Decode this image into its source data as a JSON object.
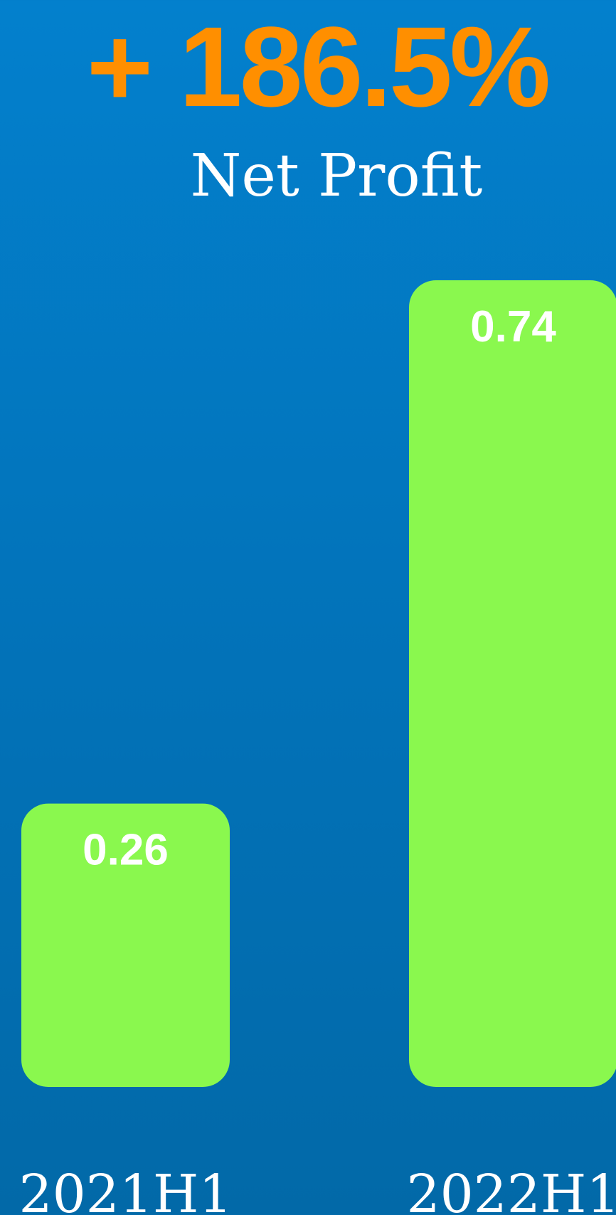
{
  "headline": "+ 186.5%",
  "colors": {
    "headline": "#ff8f00",
    "bar": "#8af84e",
    "text": "#ffffff"
  },
  "chart_data": {
    "type": "bar",
    "title": "Net Profit",
    "xlabel": "",
    "ylabel": "",
    "categories": [
      "2021H1",
      "2022H1"
    ],
    "values": [
      0.26,
      0.74
    ],
    "value_labels": [
      "0.26",
      "0.74"
    ],
    "ylim": [
      0,
      0.74
    ],
    "grid": false,
    "legend": "none"
  }
}
